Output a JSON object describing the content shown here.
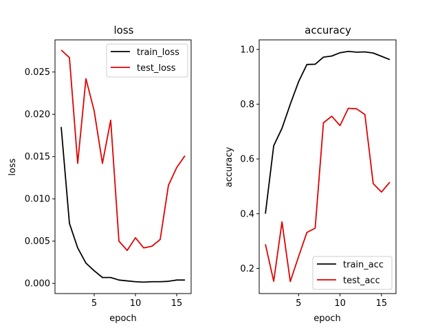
{
  "chart_data": [
    {
      "type": "line",
      "title": "loss",
      "xlabel": "epoch",
      "ylabel": "loss",
      "xlim": [
        0.25,
        16.75
      ],
      "ylim": [
        -0.0012,
        0.0288
      ],
      "xticks": [
        5,
        10,
        15
      ],
      "xtick_labels": [
        "5",
        "10",
        "15"
      ],
      "yticks": [
        0.0,
        0.005,
        0.01,
        0.015,
        0.02,
        0.025
      ],
      "ytick_labels": [
        "0.000",
        "0.005",
        "0.010",
        "0.015",
        "0.020",
        "0.025"
      ],
      "grid": false,
      "legend": "top-right",
      "x": [
        1,
        2,
        3,
        4,
        5,
        6,
        7,
        8,
        9,
        10,
        11,
        12,
        13,
        14,
        15,
        16
      ],
      "series": [
        {
          "name": "train_loss",
          "color": "#000000",
          "values": [
            0.0185,
            0.0071,
            0.0042,
            0.0024,
            0.0015,
            0.0007,
            0.0007,
            0.0004,
            0.0003,
            0.0002,
            0.00015,
            0.0002,
            0.0002,
            0.00025,
            0.0004,
            0.0004
          ]
        },
        {
          "name": "test_loss",
          "color": "#e00000",
          "values": [
            0.0276,
            0.0267,
            0.0142,
            0.0242,
            0.0204,
            0.0142,
            0.0193,
            0.005,
            0.0039,
            0.0054,
            0.0042,
            0.0044,
            0.0052,
            0.0116,
            0.0137,
            0.0151
          ]
        }
      ]
    },
    {
      "type": "line",
      "title": "accuracy",
      "xlabel": "epoch",
      "ylabel": "accuracy",
      "xlim": [
        0.25,
        16.75
      ],
      "ylim": [
        0.108,
        1.035
      ],
      "xticks": [
        5,
        10,
        15
      ],
      "xtick_labels": [
        "5",
        "10",
        "15"
      ],
      "yticks": [
        0.2,
        0.4,
        0.6,
        0.8,
        1.0
      ],
      "ytick_labels": [
        "0.2",
        "0.4",
        "0.6",
        "0.8",
        "1.0"
      ],
      "grid": false,
      "legend": "bottom-right",
      "x": [
        1,
        2,
        3,
        4,
        5,
        6,
        7,
        8,
        9,
        10,
        11,
        12,
        13,
        14,
        15,
        16
      ],
      "series": [
        {
          "name": "train_acc",
          "color": "#000000",
          "values": [
            0.4,
            0.648,
            0.712,
            0.8,
            0.882,
            0.945,
            0.946,
            0.972,
            0.976,
            0.988,
            0.993,
            0.99,
            0.991,
            0.987,
            0.975,
            0.963
          ]
        },
        {
          "name": "test_acc",
          "color": "#e00000",
          "values": [
            0.288,
            0.153,
            0.37,
            0.152,
            0.243,
            0.331,
            0.347,
            0.732,
            0.756,
            0.722,
            0.785,
            0.783,
            0.762,
            0.51,
            0.479,
            0.515
          ]
        }
      ]
    }
  ]
}
